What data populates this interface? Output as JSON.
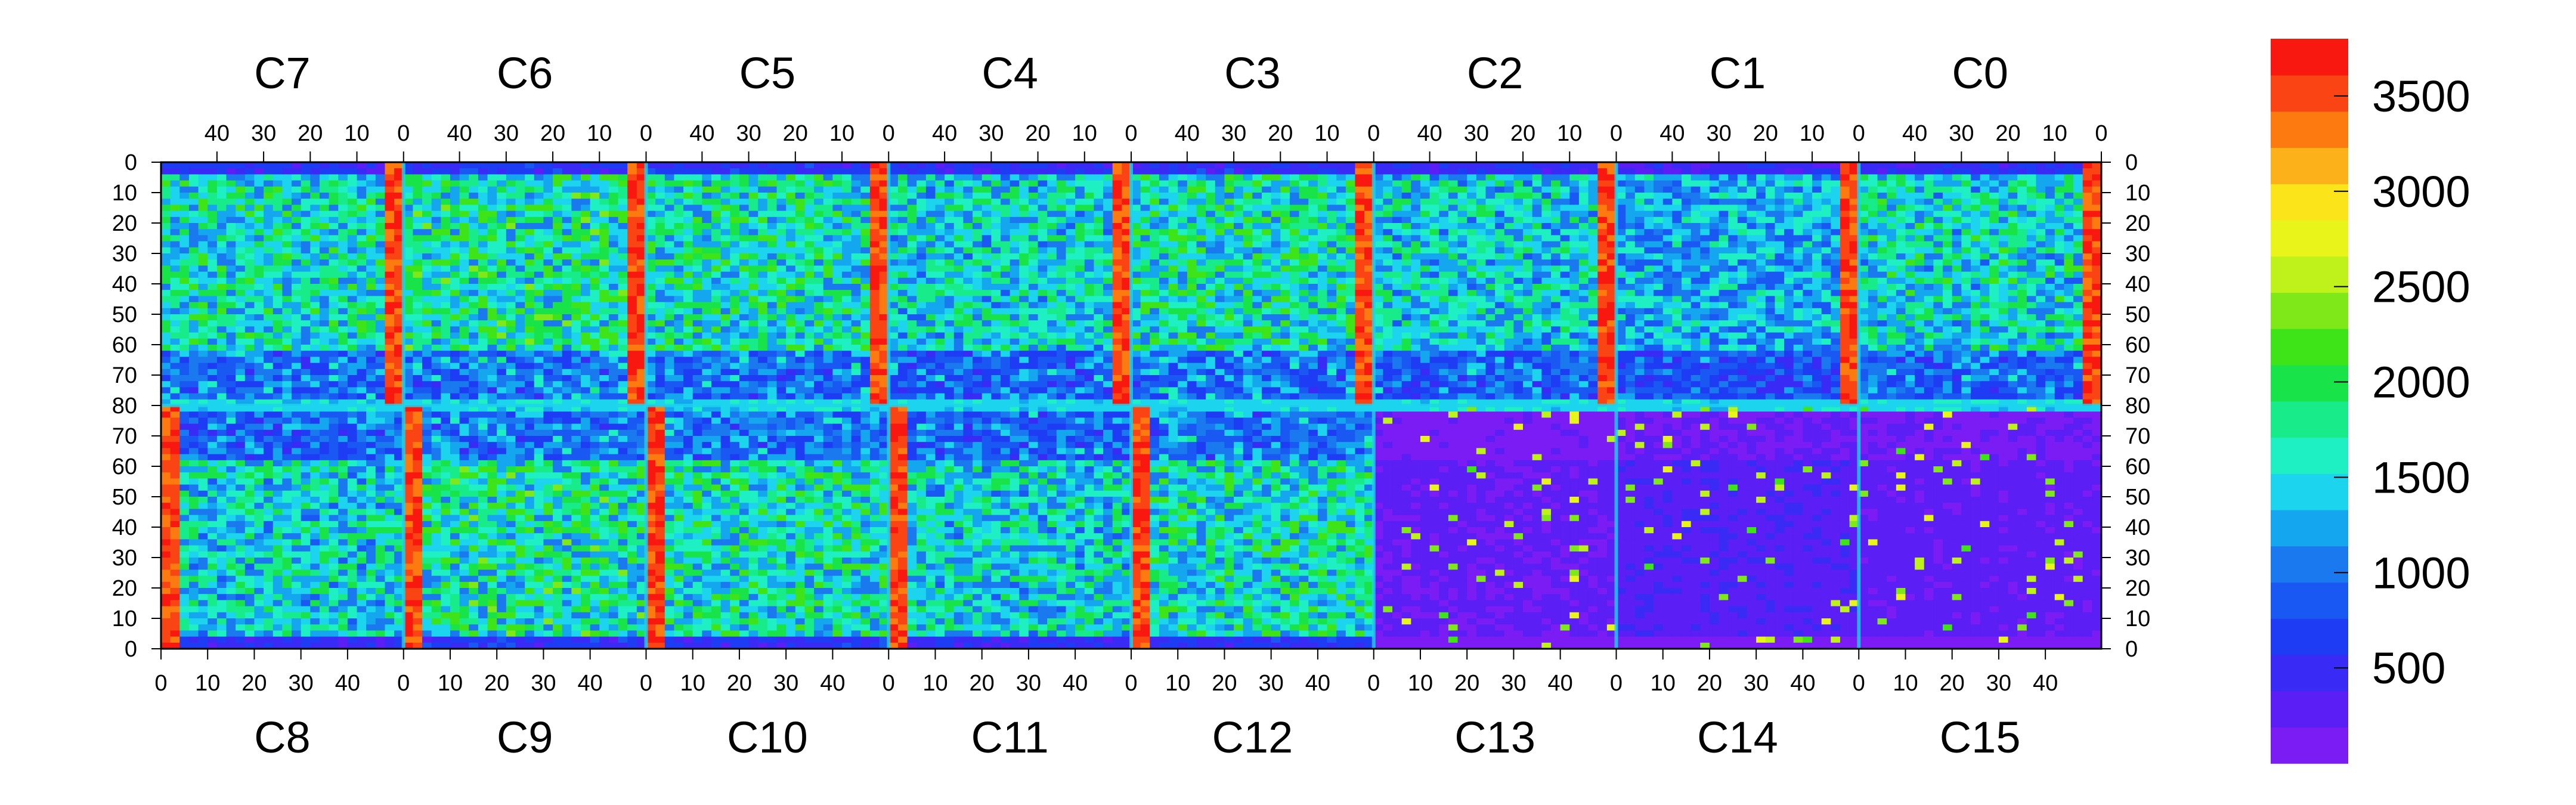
{
  "chart_data": {
    "type": "heatmap",
    "title": "",
    "xlabel": "",
    "ylabel": "",
    "top_chips": [
      "C7",
      "C6",
      "C5",
      "C4",
      "C3",
      "C2",
      "C1",
      "C0"
    ],
    "bottom_chips": [
      "C8",
      "C9",
      "C10",
      "C11",
      "C12",
      "C13",
      "C14",
      "C15"
    ],
    "top_x_ticks": [
      "40",
      "30",
      "20",
      "10",
      "0"
    ],
    "bottom_x_ticks": [
      "0",
      "10",
      "20",
      "30",
      "40"
    ],
    "columns_per_chip": 52,
    "rows_per_chip": 80,
    "y_ticks_top_half": [
      "0",
      "10",
      "20",
      "30",
      "40",
      "50",
      "60",
      "70",
      "80"
    ],
    "y_ticks_bottom_half": [
      "70",
      "60",
      "50",
      "40",
      "30",
      "20",
      "10",
      "0"
    ],
    "z_range": [
      0,
      3800
    ],
    "colorbar_ticks": [
      "500",
      "1000",
      "1500",
      "2000",
      "2500",
      "3000",
      "3500"
    ],
    "colorbar_values": [
      500,
      1000,
      1500,
      2000,
      2500,
      3000,
      3500
    ],
    "palette": [
      "#7b1cf5",
      "#5b1ef5",
      "#3a2af5",
      "#1f3cf5",
      "#1a58f3",
      "#1a79ef",
      "#14a6ee",
      "#1cd4ee",
      "#1ef0c4",
      "#18ec8a",
      "#18e44a",
      "#3ee318",
      "#7ee818",
      "#bff21a",
      "#e9f41a",
      "#fbe51a",
      "#fcb01a",
      "#fc7a10",
      "#fb4414",
      "#f81810"
    ],
    "chips": [
      {
        "name": "C7",
        "level": 1750,
        "hot_column": 0
      },
      {
        "name": "C6",
        "level": 1850,
        "hot_column": 0
      },
      {
        "name": "C5",
        "level": 1800,
        "hot_column": 0
      },
      {
        "name": "C4",
        "level": 1650,
        "hot_column": 0
      },
      {
        "name": "C3",
        "level": 1800,
        "hot_column": 0
      },
      {
        "name": "C2",
        "level": 1600,
        "hot_column": 0
      },
      {
        "name": "C1",
        "level": 1400,
        "hot_column": 0
      },
      {
        "name": "C0",
        "level": 1700,
        "hot_column": 0
      },
      {
        "name": "C8",
        "level": 1650,
        "hot_column": 0
      },
      {
        "name": "C9",
        "level": 1850,
        "hot_column": 0
      },
      {
        "name": "C10",
        "level": 1800,
        "hot_column": 0
      },
      {
        "name": "C11",
        "level": 1650,
        "hot_column": 0
      },
      {
        "name": "C12",
        "level": 1800,
        "hot_column": 0
      },
      {
        "name": "C13",
        "level": 250,
        "hot_column": 0
      },
      {
        "name": "C14",
        "level": 350,
        "hot_column": 0
      },
      {
        "name": "C15",
        "level": 300,
        "hot_column": 0
      }
    ]
  }
}
